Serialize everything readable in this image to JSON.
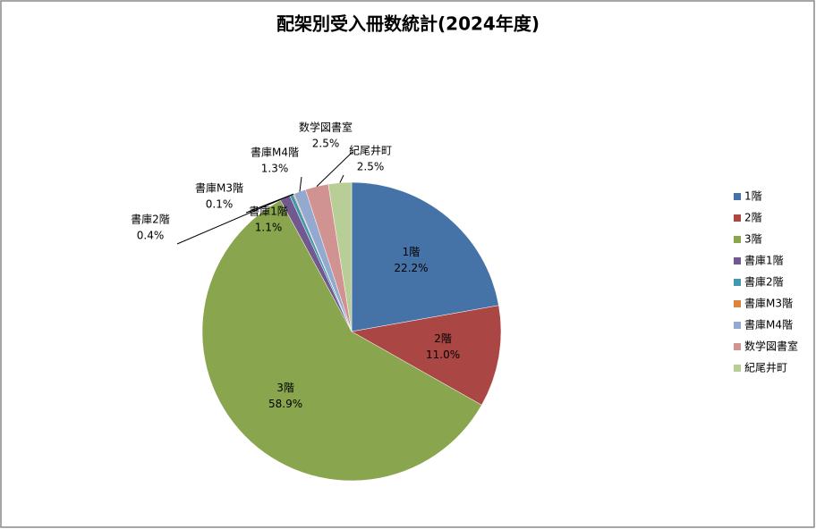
{
  "chart_data": {
    "type": "pie",
    "title": "配架別受入冊数統計(2024年度)",
    "categories": [
      "1階",
      "2階",
      "3階",
      "書庫1階",
      "書庫2階",
      "書庫M3階",
      "書庫M4階",
      "数学図書室",
      "紀尾井町"
    ],
    "values": [
      22.2,
      11.0,
      58.9,
      1.1,
      0.4,
      0.1,
      1.3,
      2.5,
      2.5
    ],
    "value_labels": [
      "22.2%",
      "11.0%",
      "58.9%",
      "1.1%",
      "0.4%",
      "0.1%",
      "1.3%",
      "2.5%",
      "2.5%"
    ],
    "colors": [
      "#4572a7",
      "#aa4643",
      "#89a54e",
      "#71588f",
      "#4198af",
      "#db843d",
      "#93a9cf",
      "#d19392",
      "#b9cd96"
    ],
    "legend": "right"
  }
}
